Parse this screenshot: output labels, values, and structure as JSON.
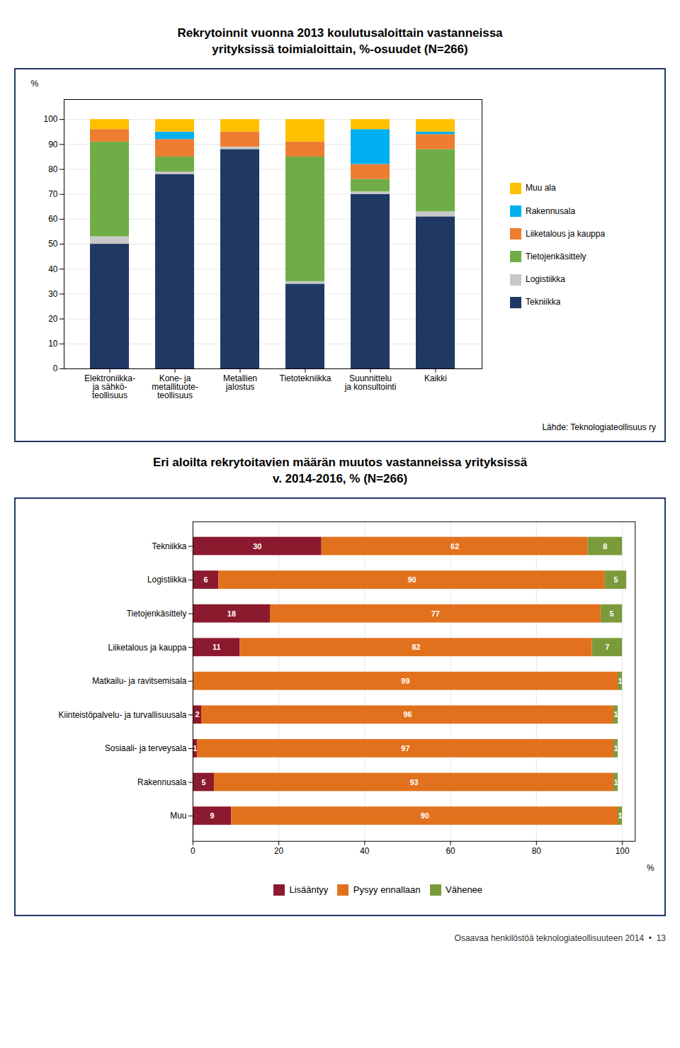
{
  "chart_data": [
    {
      "type": "bar",
      "stacked": true,
      "title": "Rekrytoinnit vuonna 2013 koulutusaloittain vastanneissa\nyrityksissä toimialoittain, %-osuudet (N=266)",
      "categories": [
        "Elektroniikka-\nja sähkö-\nteollisuus",
        "Kone- ja\nmetallituote-\nteollisuus",
        "Metallien\njalostus",
        "Tietotekniikka",
        "Suunnittelu\nja konsultointi",
        "Kaikki"
      ],
      "series": [
        {
          "name": "Tekniikka",
          "color": "#1F3864",
          "values": [
            50,
            78,
            88,
            34,
            70,
            61
          ]
        },
        {
          "name": "Logistiikka",
          "color": "#C8C8C8",
          "values": [
            3,
            1,
            1,
            1,
            1,
            2
          ]
        },
        {
          "name": "Tietojenkäsittely",
          "color": "#70AD47",
          "values": [
            38,
            6,
            0,
            50,
            5,
            25
          ]
        },
        {
          "name": "Liiketalous ja kauppa",
          "color": "#ED7D31",
          "values": [
            5,
            7,
            6,
            6,
            6,
            6
          ]
        },
        {
          "name": "Rakennusala",
          "color": "#00B0F0",
          "values": [
            0,
            3,
            0,
            0,
            14,
            1
          ]
        },
        {
          "name": "Muu ala",
          "color": "#FFC000",
          "values": [
            4,
            5,
            5,
            9,
            4,
            5
          ]
        }
      ],
      "ylim": [
        0,
        108
      ],
      "yticks": [
        0,
        10,
        20,
        30,
        40,
        50,
        60,
        70,
        80,
        90,
        100
      ],
      "ylabel": "%",
      "grid": true,
      "legend": "right",
      "annotations": [
        "Lähde: Teknologiateollisuus ry"
      ]
    },
    {
      "type": "bar",
      "stacked": true,
      "orientation": "horizontal",
      "title": "Eri aloilta rekrytoitavien määrän muutos vastanneissa yrityksissä\nv. 2014-2016, % (N=266)",
      "categories": [
        "Tekniikka",
        "Logistiikka",
        "Tietojenkäsittely",
        "Liiketalous ja kauppa",
        "Matkailu- ja ravitsemisala",
        "Kiinteistöpalvelu- ja turvallisuusala",
        "Sosiaali- ja terveysala",
        "Rakennusala",
        "Muu"
      ],
      "series": [
        {
          "name": "Lisääntyy",
          "color": "#8B1A2E",
          "values": [
            30,
            6,
            18,
            11,
            0,
            2,
            1,
            5,
            9
          ]
        },
        {
          "name": "Pysyy ennallaan",
          "color": "#E2711D",
          "values": [
            62,
            90,
            77,
            82,
            99,
            96,
            97,
            93,
            90
          ]
        },
        {
          "name": "Vähenee",
          "color": "#7B9B3A",
          "values": [
            8,
            5,
            5,
            7,
            1,
            1,
            1,
            1,
            1
          ]
        }
      ],
      "xlim": [
        0,
        103
      ],
      "xticks": [
        0,
        20,
        40,
        60,
        80,
        100
      ],
      "xlabel": "%",
      "grid": true,
      "data_labels": true,
      "legend": "bottom",
      "annotations": [
        "Osaavaa henkilöstöä teknologiateollisuuteen 2014  •  13"
      ]
    }
  ]
}
